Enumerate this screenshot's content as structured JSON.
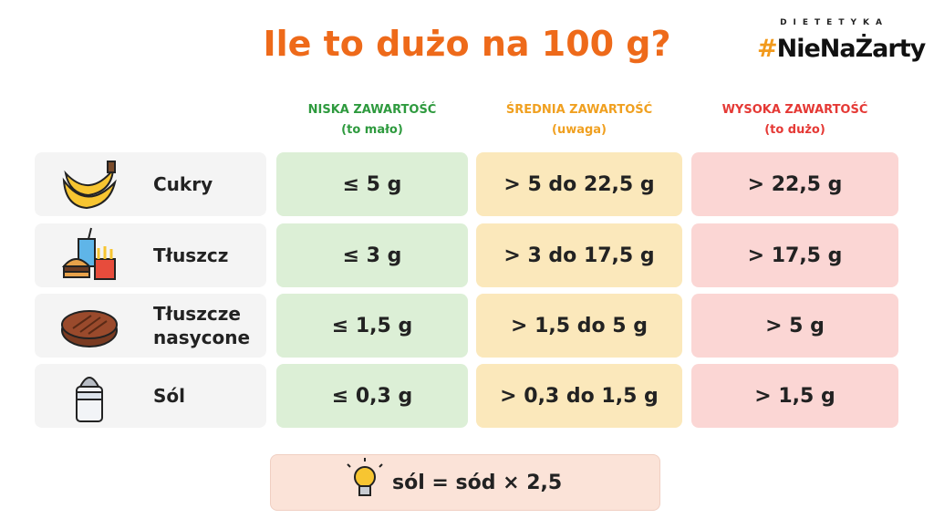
{
  "header": {
    "title": "Ile to dużo na 100 g?",
    "brand_top": "DIETETYKA",
    "brand_hash": "#",
    "brand_name": "NieNaŻarty"
  },
  "table": {
    "columns": [
      {
        "label": "NISKA ZAWARTOŚĆ",
        "sub": "(to mało)"
      },
      {
        "label": "ŚREDNIA ZAWARTOŚĆ",
        "sub": "(uwaga)"
      },
      {
        "label": "WYSOKA ZAWARTOŚĆ",
        "sub": "(to dużo)"
      }
    ],
    "rows": [
      {
        "label": "Cukry",
        "cells": [
          "≤ 5 g",
          "> 5 do 22,5 g",
          "> 22,5 g"
        ]
      },
      {
        "label": "Tłuszcz",
        "cells": [
          "≤ 3 g",
          "> 3 do 17,5 g",
          "> 17,5 g"
        ]
      },
      {
        "label": "Tłuszcze nasycone",
        "cells": [
          "≤ 1,5 g",
          "> 1,5 do 5 g",
          "> 5 g"
        ]
      },
      {
        "label": "Sól",
        "cells": [
          "≤ 0,3 g",
          "> 0,3 do 1,5 g",
          "> 1,5 g"
        ]
      }
    ]
  },
  "footer": {
    "note": "sól = sód × 2,5"
  }
}
